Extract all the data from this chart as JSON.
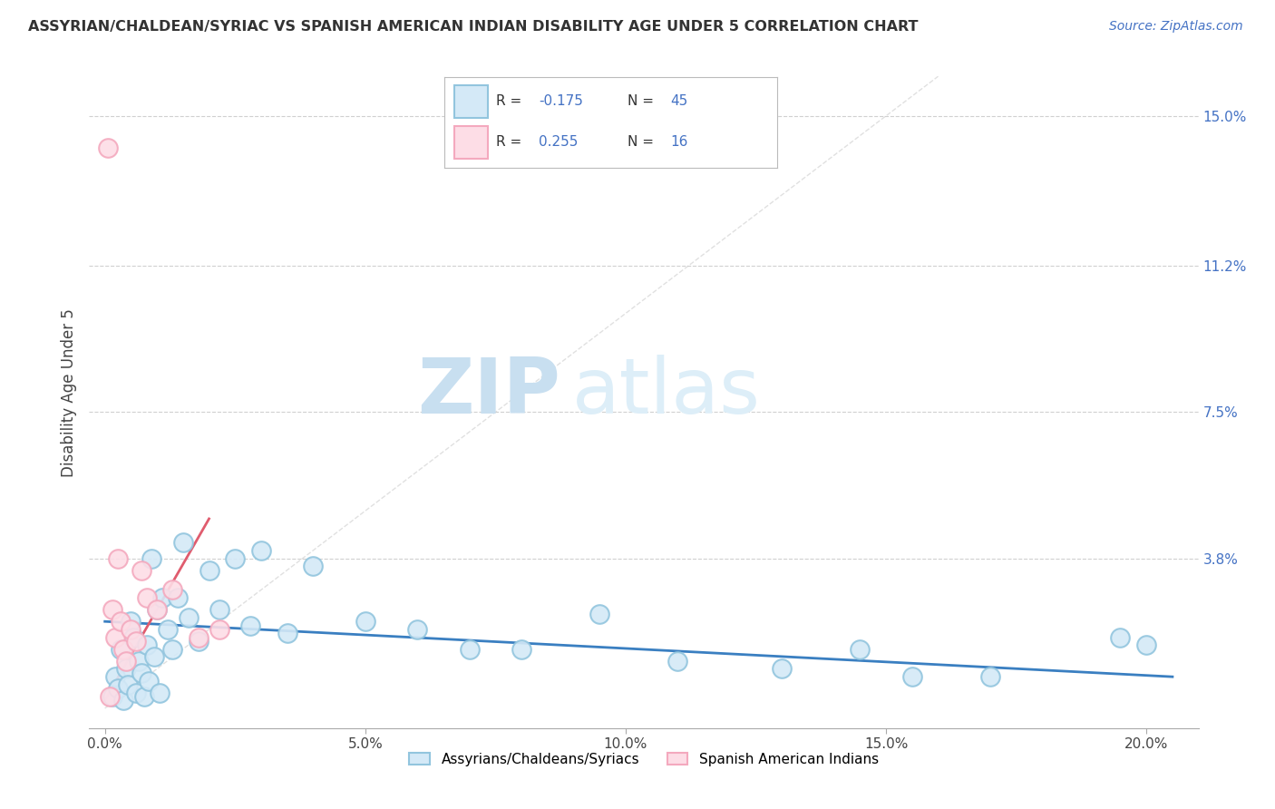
{
  "title": "ASSYRIAN/CHALDEAN/SYRIAC VS SPANISH AMERICAN INDIAN DISABILITY AGE UNDER 5 CORRELATION CHART",
  "source": "Source: ZipAtlas.com",
  "ylabel": "Disability Age Under 5",
  "x_tick_labels": [
    "0.0%",
    "5.0%",
    "10.0%",
    "15.0%",
    "20.0%"
  ],
  "x_tick_positions": [
    0.0,
    5.0,
    10.0,
    15.0,
    20.0
  ],
  "y_tick_labels_right": [
    "15.0%",
    "11.2%",
    "7.5%",
    "3.8%"
  ],
  "y_tick_values_right": [
    15.0,
    11.2,
    7.5,
    3.8
  ],
  "xlim": [
    -0.3,
    21.0
  ],
  "ylim": [
    -0.5,
    16.5
  ],
  "legend_R1": "-0.175",
  "legend_N1": "45",
  "legend_R2": "0.255",
  "legend_N2": "16",
  "blue_color": "#92c5de",
  "blue_fill": "#d4e9f7",
  "pink_color": "#f4a9be",
  "pink_fill": "#fddde6",
  "trend_blue_color": "#3a7fc1",
  "trend_pink_color": "#e05c6e",
  "grid_color": "#d0d0d0",
  "diagonal_color": "#cccccc",
  "watermark_zip_color": "#c8dff0",
  "watermark_atlas_color": "#ddeef8",
  "blue_scatter_x": [
    0.15,
    0.2,
    0.25,
    0.3,
    0.35,
    0.4,
    0.45,
    0.5,
    0.55,
    0.6,
    0.65,
    0.7,
    0.75,
    0.8,
    0.85,
    0.9,
    0.95,
    1.0,
    1.05,
    1.1,
    1.2,
    1.3,
    1.4,
    1.5,
    1.6,
    1.8,
    2.0,
    2.2,
    2.5,
    2.8,
    3.0,
    3.5,
    4.0,
    5.0,
    6.0,
    7.0,
    8.0,
    9.5,
    11.0,
    13.0,
    14.5,
    15.5,
    17.0,
    19.5,
    20.0
  ],
  "blue_scatter_y": [
    0.3,
    0.8,
    0.5,
    1.5,
    0.2,
    1.0,
    0.6,
    2.2,
    1.8,
    0.4,
    1.2,
    0.9,
    0.3,
    1.6,
    0.7,
    3.8,
    1.3,
    2.5,
    0.4,
    2.8,
    2.0,
    1.5,
    2.8,
    4.2,
    2.3,
    1.7,
    3.5,
    2.5,
    3.8,
    2.1,
    4.0,
    1.9,
    3.6,
    2.2,
    2.0,
    1.5,
    1.5,
    2.4,
    1.2,
    1.0,
    1.5,
    0.8,
    0.8,
    1.8,
    1.6
  ],
  "pink_scatter_x": [
    0.05,
    0.1,
    0.15,
    0.2,
    0.25,
    0.3,
    0.35,
    0.4,
    0.5,
    0.6,
    0.7,
    0.8,
    1.0,
    1.3,
    1.8,
    2.2
  ],
  "pink_scatter_y": [
    14.2,
    0.3,
    2.5,
    1.8,
    3.8,
    2.2,
    1.5,
    1.2,
    2.0,
    1.7,
    3.5,
    2.8,
    2.5,
    3.0,
    1.8,
    2.0
  ],
  "blue_trend_x0": 0.0,
  "blue_trend_x1": 20.5,
  "blue_trend_y0": 2.2,
  "blue_trend_y1": 0.8,
  "pink_trend_x0": 0.0,
  "pink_trend_x1": 2.0,
  "pink_trend_y0": 0.2,
  "pink_trend_y1": 4.8
}
